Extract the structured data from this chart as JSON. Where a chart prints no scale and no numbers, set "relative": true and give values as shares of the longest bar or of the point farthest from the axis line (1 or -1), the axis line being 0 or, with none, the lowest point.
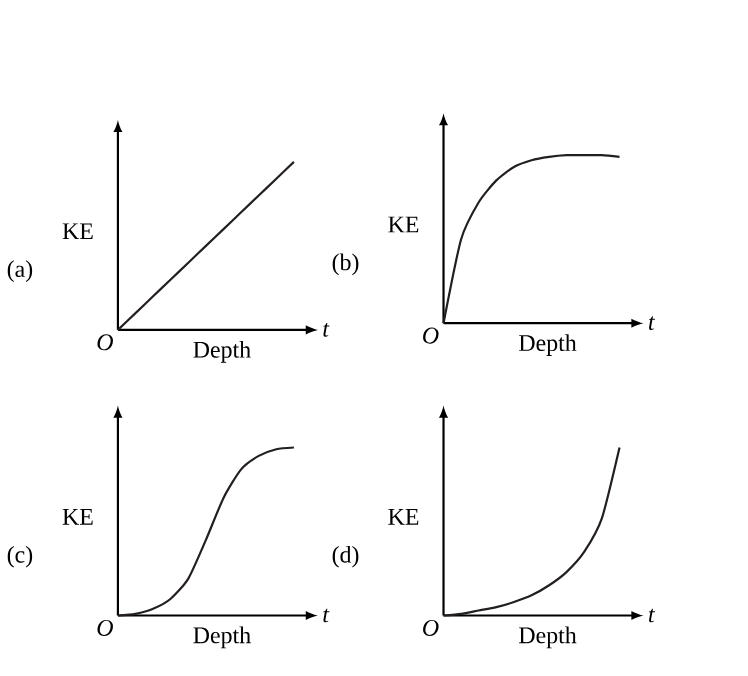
{
  "chart_data": [
    {
      "type": "line",
      "ylabel": "KE",
      "xlabel": "Depth",
      "annotations": [
        "(a)",
        "O",
        "t"
      ],
      "relative": true,
      "color": "#231f20",
      "categories": [
        null,
        null,
        null,
        null,
        null,
        null,
        null,
        null,
        null,
        null,
        null
      ],
      "values": [
        0,
        0.1,
        0.2,
        0.3,
        0.4,
        0.5,
        0.6,
        0.7,
        0.8,
        0.9,
        1
      ]
    },
    {
      "type": "line",
      "ylabel": "KE",
      "xlabel": "Depth",
      "annotations": [
        "(b)",
        "O",
        "t"
      ],
      "relative": true,
      "color": "#231f20",
      "categories": [
        null,
        null,
        null,
        null,
        null,
        null,
        null,
        null,
        null,
        null,
        null
      ],
      "values": [
        0,
        0.5,
        0.72,
        0.85,
        0.93,
        0.97,
        0.99,
        1,
        1,
        1,
        0.99
      ]
    },
    {
      "type": "line",
      "ylabel": "KE",
      "xlabel": "Depth",
      "annotations": [
        "(c)",
        "O",
        "t"
      ],
      "relative": true,
      "color": "#231f20",
      "categories": [
        null,
        null,
        null,
        null,
        null,
        null,
        null,
        null,
        null,
        null,
        null
      ],
      "values": [
        0,
        0.01,
        0.04,
        0.1,
        0.22,
        0.45,
        0.7,
        0.87,
        0.95,
        0.99,
        1
      ]
    },
    {
      "type": "line",
      "ylabel": "KE",
      "xlabel": "Depth",
      "annotations": [
        "(d)",
        "O",
        "t"
      ],
      "relative": true,
      "color": "#231f20",
      "categories": [
        null,
        null,
        null,
        null,
        null,
        null,
        null,
        null,
        null,
        null,
        null
      ],
      "values": [
        0,
        0.01,
        0.03,
        0.05,
        0.08,
        0.12,
        0.18,
        0.26,
        0.38,
        0.58,
        1
      ]
    }
  ]
}
